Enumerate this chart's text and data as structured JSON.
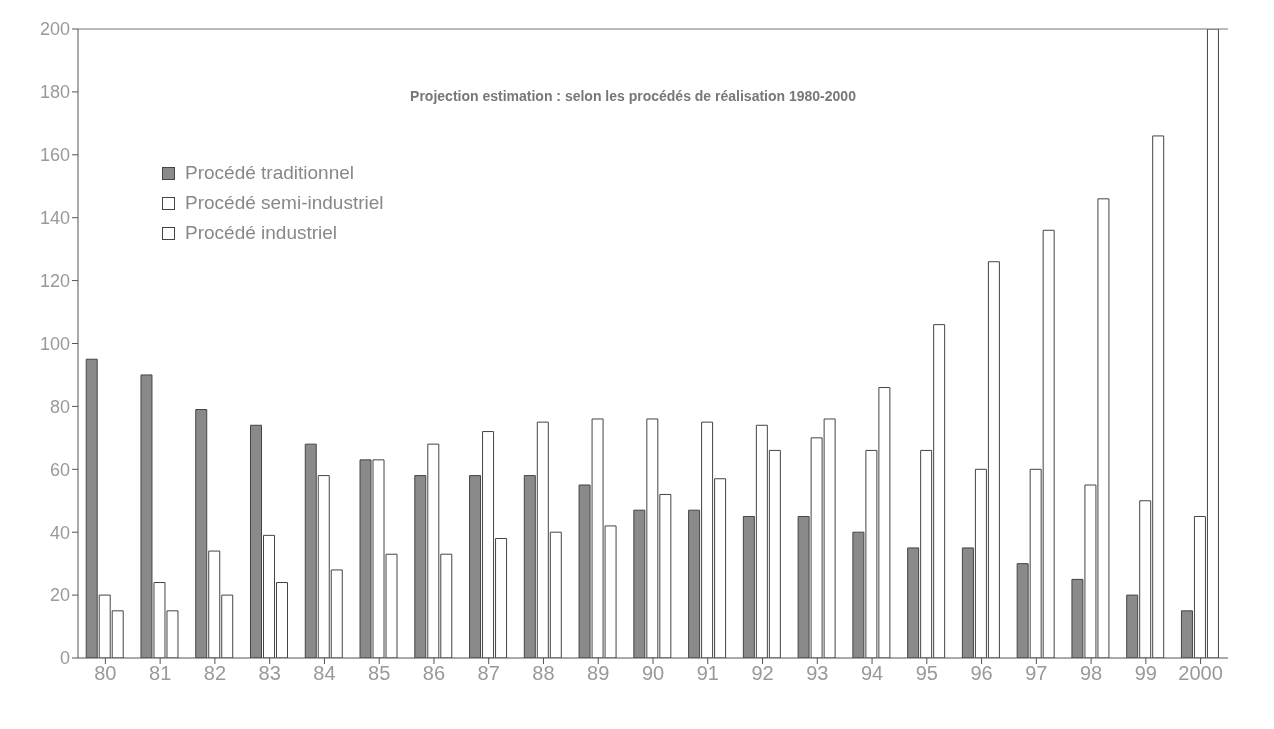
{
  "chart_data": {
    "type": "bar",
    "title": "Projection estimation : selon les procédés de réalisation 1980-2000",
    "categories": [
      "80",
      "81",
      "82",
      "83",
      "84",
      "85",
      "86",
      "87",
      "88",
      "89",
      "90",
      "91",
      "92",
      "93",
      "94",
      "95",
      "96",
      "97",
      "98",
      "99",
      "2000"
    ],
    "series": [
      {
        "name": "Procédé traditionnel",
        "color": "#8a8a8a",
        "values": [
          95,
          90,
          79,
          74,
          68,
          63,
          58,
          58,
          58,
          55,
          47,
          47,
          45,
          45,
          40,
          35,
          35,
          30,
          25,
          20,
          15
        ]
      },
      {
        "name": "Procédé semi-industriel",
        "color": "#ffffff",
        "values": [
          20,
          24,
          34,
          39,
          58,
          63,
          68,
          72,
          75,
          76,
          76,
          75,
          74,
          70,
          66,
          66,
          60,
          60,
          55,
          50,
          45
        ]
      },
      {
        "name": "Procédé industriel",
        "color": "#ffffff",
        "values": [
          15,
          15,
          20,
          24,
          28,
          33,
          33,
          38,
          40,
          42,
          52,
          57,
          66,
          76,
          86,
          106,
          126,
          136,
          146,
          166,
          200
        ]
      }
    ],
    "ylim": [
      0,
      200
    ],
    "yticks": [
      0,
      20,
      40,
      60,
      80,
      100,
      120,
      140,
      160,
      180,
      200
    ],
    "legend": "top left"
  }
}
